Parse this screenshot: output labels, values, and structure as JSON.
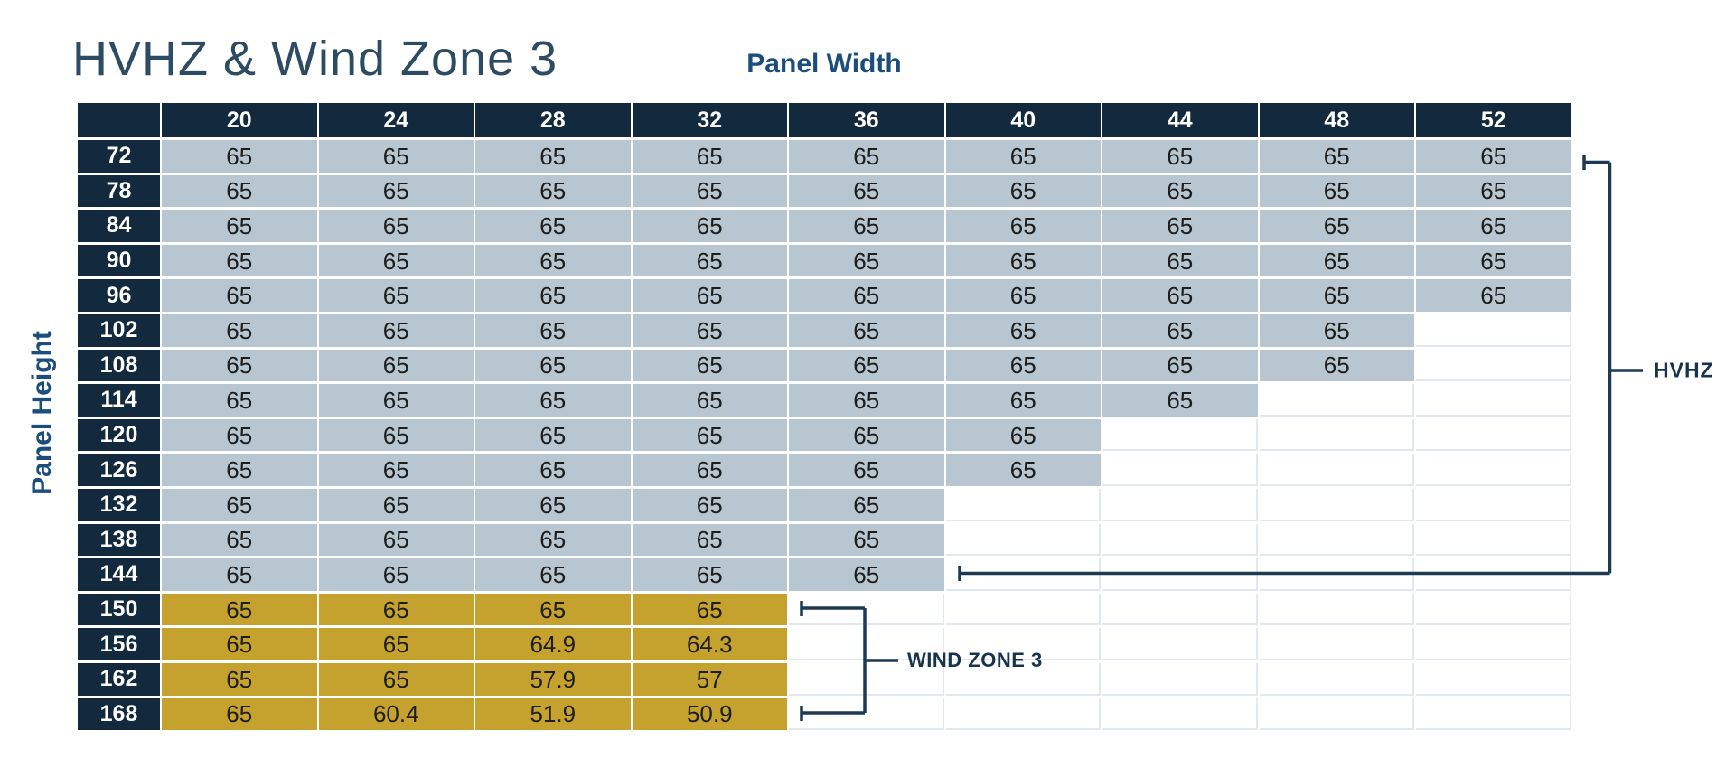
{
  "title": "HVHZ & Wind Zone 3",
  "axis": {
    "x_label": "Panel Width",
    "y_label": "Panel Height"
  },
  "annotations": {
    "hvhz_label": "HVHZ",
    "wind_zone_3_label": "WIND ZONE 3"
  },
  "colors": {
    "header_navy": "#12293e",
    "hvhz_cell": "#b7c6d0",
    "wind_zone_3_cell": "#c4a22d",
    "bracket_line": "#1c3a54",
    "title_text": "#2d4c63",
    "axis_label_text": "#1b4d7d",
    "cell_text": "#1d1d1b",
    "empty_grid_line": "#e2e8f1"
  },
  "chart_data": {
    "type": "table",
    "title": "HVHZ & Wind Zone 3",
    "x_axis_label": "Panel Width",
    "y_axis_label": "Panel Height",
    "columns": [
      "20",
      "24",
      "28",
      "32",
      "36",
      "40",
      "44",
      "48",
      "52"
    ],
    "rows": [
      {
        "height": "72",
        "zone": "hvhz",
        "values": [
          65,
          65,
          65,
          65,
          65,
          65,
          65,
          65,
          65
        ]
      },
      {
        "height": "78",
        "zone": "hvhz",
        "values": [
          65,
          65,
          65,
          65,
          65,
          65,
          65,
          65,
          65
        ]
      },
      {
        "height": "84",
        "zone": "hvhz",
        "values": [
          65,
          65,
          65,
          65,
          65,
          65,
          65,
          65,
          65
        ]
      },
      {
        "height": "90",
        "zone": "hvhz",
        "values": [
          65,
          65,
          65,
          65,
          65,
          65,
          65,
          65,
          65
        ]
      },
      {
        "height": "96",
        "zone": "hvhz",
        "values": [
          65,
          65,
          65,
          65,
          65,
          65,
          65,
          65,
          65
        ]
      },
      {
        "height": "102",
        "zone": "hvhz",
        "values": [
          65,
          65,
          65,
          65,
          65,
          65,
          65,
          65
        ]
      },
      {
        "height": "108",
        "zone": "hvhz",
        "values": [
          65,
          65,
          65,
          65,
          65,
          65,
          65,
          65
        ]
      },
      {
        "height": "114",
        "zone": "hvhz",
        "values": [
          65,
          65,
          65,
          65,
          65,
          65,
          65
        ]
      },
      {
        "height": "120",
        "zone": "hvhz",
        "values": [
          65,
          65,
          65,
          65,
          65,
          65
        ]
      },
      {
        "height": "126",
        "zone": "hvhz",
        "values": [
          65,
          65,
          65,
          65,
          65,
          65
        ]
      },
      {
        "height": "132",
        "zone": "hvhz",
        "values": [
          65,
          65,
          65,
          65,
          65
        ]
      },
      {
        "height": "138",
        "zone": "hvhz",
        "values": [
          65,
          65,
          65,
          65,
          65
        ]
      },
      {
        "height": "144",
        "zone": "hvhz",
        "values": [
          65,
          65,
          65,
          65,
          65
        ]
      },
      {
        "height": "150",
        "zone": "wind3",
        "values": [
          65,
          65,
          65,
          65
        ]
      },
      {
        "height": "156",
        "zone": "wind3",
        "values": [
          65,
          65,
          64.9,
          64.3
        ]
      },
      {
        "height": "162",
        "zone": "wind3",
        "values": [
          65,
          65,
          57.9,
          57
        ]
      },
      {
        "height": "168",
        "zone": "wind3",
        "values": [
          65,
          60.4,
          51.9,
          50.9
        ]
      }
    ],
    "zones": {
      "hvhz": {
        "label": "HVHZ",
        "row_range": "72-144"
      },
      "wind3": {
        "label": "WIND ZONE 3",
        "row_range": "150-168"
      }
    },
    "layout_hints": {
      "grid": "on",
      "filled_cell_count_per_row": [
        9,
        9,
        9,
        9,
        9,
        8,
        8,
        7,
        6,
        6,
        5,
        5,
        5,
        4,
        4,
        4,
        4
      ]
    }
  }
}
